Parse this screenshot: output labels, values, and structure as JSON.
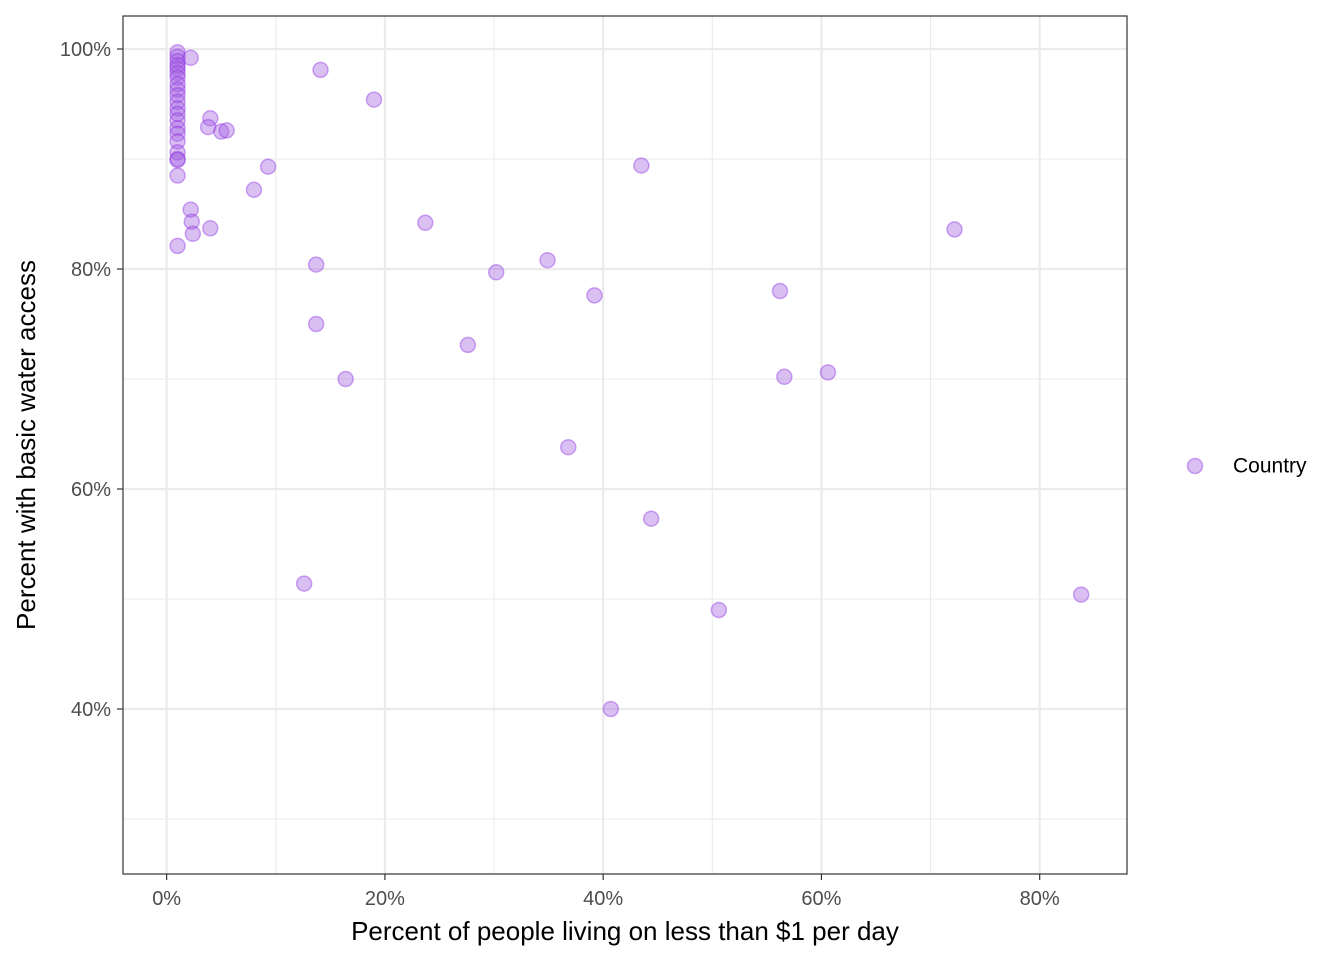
{
  "chart_data": {
    "type": "scatter",
    "xlabel": "Percent of people living on less than $1 per day",
    "ylabel": "Percent with basic water access",
    "xlim": [
      -0.04,
      0.88
    ],
    "ylim": [
      0.25,
      1.03
    ],
    "x_ticks": [
      0,
      0.2,
      0.4,
      0.6,
      0.8
    ],
    "x_tick_labels": [
      "0%",
      "20%",
      "40%",
      "60%",
      "80%"
    ],
    "y_ticks": [
      0.4,
      0.6,
      0.8,
      1.0
    ],
    "y_tick_labels": [
      "40%",
      "60%",
      "80%",
      "100%"
    ],
    "grid": true,
    "legend": {
      "position": "right",
      "entries": [
        "Country"
      ]
    },
    "colors": {
      "point_fill": "#a35fe0",
      "point_stroke": "#8a2be2",
      "grid": "#ebebeb",
      "panel_border": "#333333"
    },
    "series": [
      {
        "name": "Country",
        "points": [
          [
            0.01,
            0.997
          ],
          [
            0.01,
            0.993
          ],
          [
            0.01,
            0.989
          ],
          [
            0.01,
            0.985
          ],
          [
            0.01,
            0.982
          ],
          [
            0.01,
            0.978
          ],
          [
            0.01,
            0.974
          ],
          [
            0.01,
            0.968
          ],
          [
            0.01,
            0.963
          ],
          [
            0.01,
            0.958
          ],
          [
            0.01,
            0.952
          ],
          [
            0.01,
            0.946
          ],
          [
            0.01,
            0.941
          ],
          [
            0.01,
            0.935
          ],
          [
            0.01,
            0.928
          ],
          [
            0.01,
            0.923
          ],
          [
            0.01,
            0.916
          ],
          [
            0.01,
            0.906
          ],
          [
            0.01,
            0.9
          ],
          [
            0.01,
            0.899
          ],
          [
            0.01,
            0.885
          ],
          [
            0.01,
            0.821
          ],
          [
            0.022,
            0.992
          ],
          [
            0.022,
            0.854
          ],
          [
            0.023,
            0.843
          ],
          [
            0.024,
            0.832
          ],
          [
            0.04,
            0.937
          ],
          [
            0.038,
            0.929
          ],
          [
            0.04,
            0.837
          ],
          [
            0.05,
            0.925
          ],
          [
            0.055,
            0.926
          ],
          [
            0.08,
            0.872
          ],
          [
            0.093,
            0.893
          ],
          [
            0.126,
            0.514
          ],
          [
            0.137,
            0.804
          ],
          [
            0.137,
            0.75
          ],
          [
            0.141,
            0.981
          ],
          [
            0.164,
            0.7
          ],
          [
            0.19,
            0.954
          ],
          [
            0.237,
            0.842
          ],
          [
            0.276,
            0.731
          ],
          [
            0.302,
            0.797
          ],
          [
            0.349,
            0.808
          ],
          [
            0.368,
            0.638
          ],
          [
            0.392,
            0.776
          ],
          [
            0.407,
            0.4
          ],
          [
            0.435,
            0.894
          ],
          [
            0.444,
            0.573
          ],
          [
            0.506,
            0.49
          ],
          [
            0.562,
            0.78
          ],
          [
            0.566,
            0.702
          ],
          [
            0.606,
            0.706
          ],
          [
            0.722,
            0.836
          ],
          [
            0.838,
            0.504
          ]
        ]
      }
    ]
  }
}
